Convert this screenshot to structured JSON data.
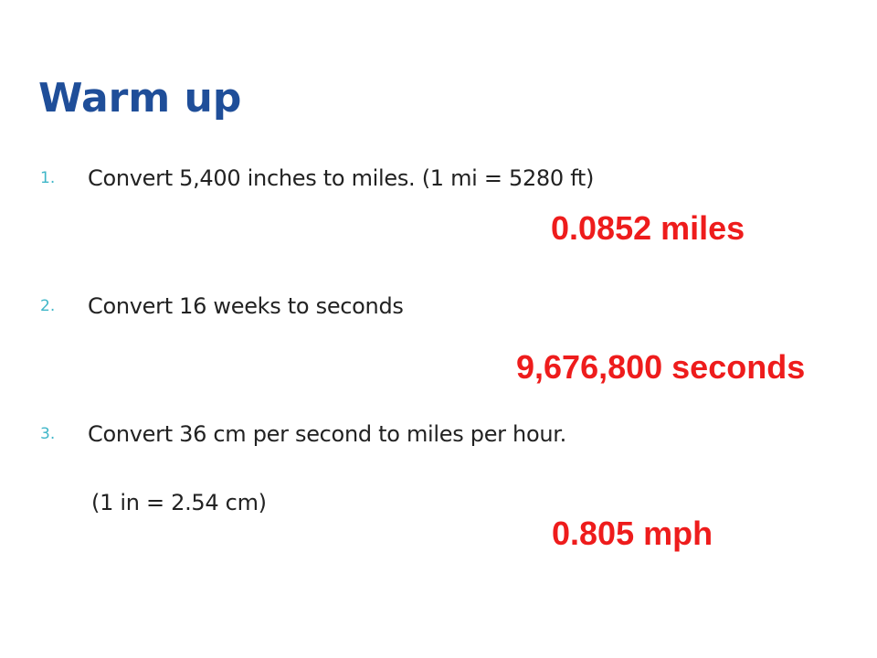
{
  "slide": {
    "title": "Warm up",
    "problems": [
      {
        "number": "1.",
        "text": "Convert 5,400 inches to miles.  (1 mi = 5280 ft)",
        "answer": "0.0852 miles"
      },
      {
        "number": "2.",
        "text": "Convert 16 weeks to seconds",
        "answer": "9,676,800 seconds"
      },
      {
        "number": "3.",
        "text": "Convert 36 cm per second to miles per hour.",
        "note": "(1 in = 2.54 cm)",
        "answer": "0.805 mph"
      }
    ]
  },
  "colors": {
    "title": "#1f4e99",
    "number": "#3fb6c8",
    "body_text": "#222222",
    "answer": "#ee1c1c",
    "background": "#ffffff"
  }
}
